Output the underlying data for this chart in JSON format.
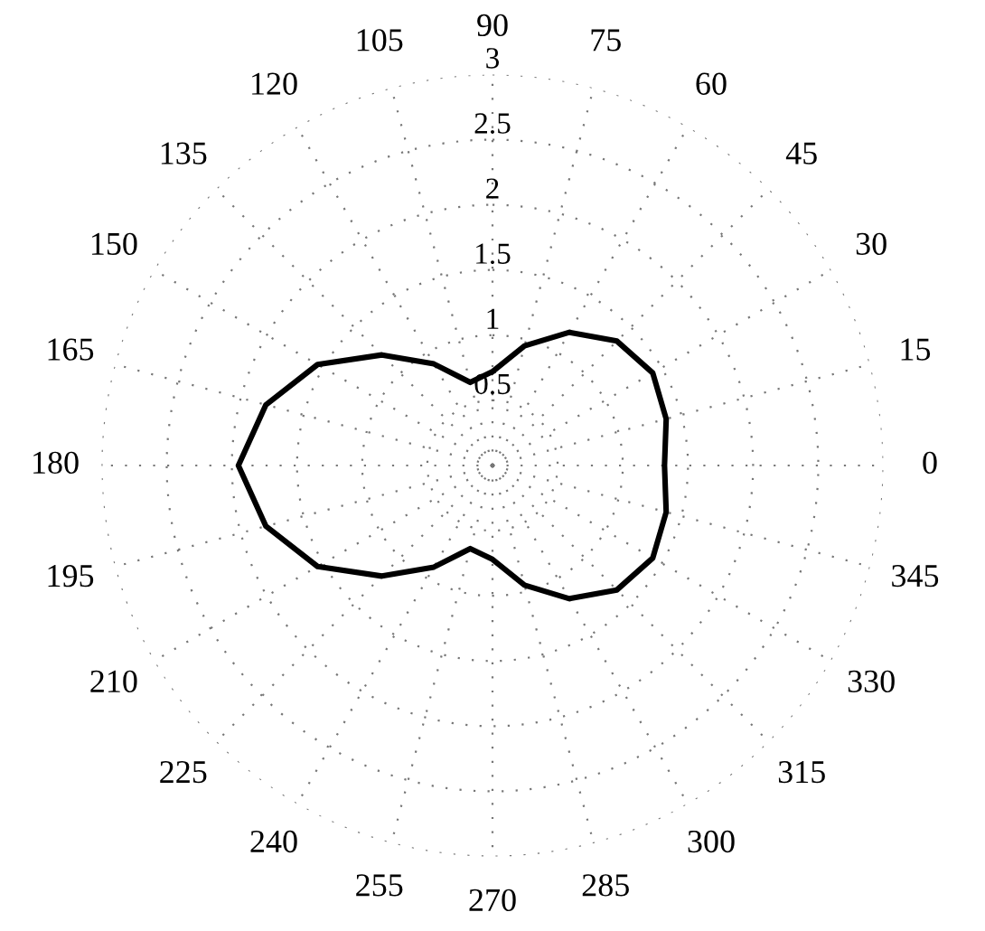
{
  "chart_data": {
    "type": "radar",
    "categories": [
      "90",
      "75",
      "60",
      "45",
      "30",
      "15",
      "0",
      "345",
      "330",
      "315",
      "300",
      "285",
      "270",
      "255",
      "240",
      "225",
      "210",
      "195",
      "180",
      "165",
      "150",
      "135",
      "120",
      "105"
    ],
    "series": [
      {
        "color": "#000000",
        "values": [
          0.72,
          0.95,
          1.18,
          1.35,
          1.42,
          1.38,
          1.32,
          1.38,
          1.42,
          1.35,
          1.18,
          0.95,
          0.72,
          0.66,
          0.9,
          1.2,
          1.55,
          1.8,
          1.95,
          1.8,
          1.55,
          1.2,
          0.9,
          0.66
        ]
      }
    ],
    "ylim": [
      0,
      3
    ],
    "yticks": [
      0.5,
      1,
      1.5,
      2,
      2.5,
      3
    ],
    "grid": true,
    "line_style": "solid"
  }
}
